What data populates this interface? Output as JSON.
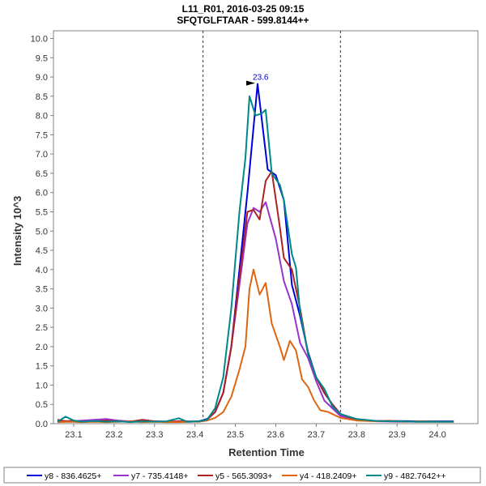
{
  "chart_data": {
    "type": "line",
    "title": "L11_R01, 2016-03-25 09:15",
    "subtitle": "SFQTGLFTAAR - 599.8144++",
    "xlabel": "Retention Time",
    "ylabel": "Intensity 10^3",
    "xlim": [
      23.05,
      24.1
    ],
    "ylim": [
      0,
      10.2
    ],
    "x_ticks": [
      23.1,
      23.2,
      23.3,
      23.4,
      23.5,
      23.6,
      23.7,
      23.8,
      23.9,
      24.0
    ],
    "x_tick_labels": [
      "23.1",
      "23.2",
      "23.3",
      "23.4",
      "23.5",
      "23.6",
      "23.7",
      "23.8",
      "23.9",
      "24.0"
    ],
    "y_ticks": [
      0.0,
      0.5,
      1.0,
      1.5,
      2.0,
      2.5,
      3.0,
      3.5,
      4.0,
      4.5,
      5.0,
      5.5,
      6.0,
      6.5,
      7.0,
      7.5,
      8.0,
      8.5,
      9.0,
      9.5,
      10.0
    ],
    "y_tick_labels": [
      "0.0",
      "0.5",
      "1.0",
      "1.5",
      "2.0",
      "2.5",
      "3.0",
      "3.5",
      "4.0",
      "4.5",
      "5.0",
      "5.5",
      "6.0",
      "6.5",
      "7.0",
      "7.5",
      "8.0",
      "8.5",
      "9.0",
      "9.5",
      "10.0"
    ],
    "grid": false,
    "integration_boundaries": [
      23.42,
      23.76
    ],
    "peak_annotation": {
      "label": "23.6",
      "x": 23.555,
      "y": 8.82,
      "color": "#0000cc"
    },
    "legend_position": "bottom",
    "series": [
      {
        "name": "y8 - 836.4625+",
        "color": "#0000dd",
        "points": [
          [
            23.06,
            0.06
          ],
          [
            23.09,
            0.05
          ],
          [
            23.12,
            0.06
          ],
          [
            23.15,
            0.05
          ],
          [
            23.18,
            0.06
          ],
          [
            23.21,
            0.05
          ],
          [
            23.24,
            0.06
          ],
          [
            23.27,
            0.05
          ],
          [
            23.3,
            0.06
          ],
          [
            23.33,
            0.05
          ],
          [
            23.36,
            0.05
          ],
          [
            23.39,
            0.05
          ],
          [
            23.41,
            0.06
          ],
          [
            23.43,
            0.12
          ],
          [
            23.45,
            0.3
          ],
          [
            23.47,
            0.8
          ],
          [
            23.49,
            2.0
          ],
          [
            23.51,
            4.0
          ],
          [
            23.53,
            6.0
          ],
          [
            23.555,
            8.82
          ],
          [
            23.58,
            6.6
          ],
          [
            23.6,
            6.45
          ],
          [
            23.62,
            5.8
          ],
          [
            23.64,
            3.6
          ],
          [
            23.66,
            2.8
          ],
          [
            23.68,
            1.85
          ],
          [
            23.7,
            1.2
          ],
          [
            23.72,
            0.8
          ],
          [
            23.74,
            0.5
          ],
          [
            23.76,
            0.25
          ],
          [
            23.78,
            0.15
          ],
          [
            23.8,
            0.1
          ],
          [
            23.85,
            0.07
          ],
          [
            23.9,
            0.07
          ],
          [
            23.95,
            0.06
          ],
          [
            24.0,
            0.06
          ],
          [
            24.04,
            0.06
          ]
        ]
      },
      {
        "name": "y7 - 735.4148+",
        "color": "#9933cc",
        "points": [
          [
            23.06,
            0.08
          ],
          [
            23.09,
            0.06
          ],
          [
            23.12,
            0.08
          ],
          [
            23.15,
            0.1
          ],
          [
            23.18,
            0.12
          ],
          [
            23.21,
            0.08
          ],
          [
            23.24,
            0.06
          ],
          [
            23.27,
            0.08
          ],
          [
            23.3,
            0.06
          ],
          [
            23.33,
            0.05
          ],
          [
            23.36,
            0.06
          ],
          [
            23.39,
            0.06
          ],
          [
            23.41,
            0.05
          ],
          [
            23.43,
            0.1
          ],
          [
            23.45,
            0.3
          ],
          [
            23.47,
            0.8
          ],
          [
            23.49,
            2.0
          ],
          [
            23.51,
            3.6
          ],
          [
            23.53,
            5.2
          ],
          [
            23.545,
            5.6
          ],
          [
            23.56,
            5.5
          ],
          [
            23.575,
            5.75
          ],
          [
            23.6,
            4.8
          ],
          [
            23.62,
            3.7
          ],
          [
            23.64,
            3.1
          ],
          [
            23.66,
            2.1
          ],
          [
            23.68,
            1.7
          ],
          [
            23.7,
            1.1
          ],
          [
            23.72,
            0.6
          ],
          [
            23.74,
            0.4
          ],
          [
            23.76,
            0.2
          ],
          [
            23.8,
            0.1
          ],
          [
            23.85,
            0.06
          ],
          [
            23.9,
            0.05
          ],
          [
            23.95,
            0.05
          ],
          [
            24.0,
            0.05
          ],
          [
            24.04,
            0.05
          ]
        ]
      },
      {
        "name": "y5 - 565.3093+",
        "color": "#aa2222",
        "points": [
          [
            23.06,
            0.1
          ],
          [
            23.08,
            0.06
          ],
          [
            23.1,
            0.08
          ],
          [
            23.12,
            0.05
          ],
          [
            23.15,
            0.06
          ],
          [
            23.18,
            0.08
          ],
          [
            23.21,
            0.06
          ],
          [
            23.24,
            0.05
          ],
          [
            23.27,
            0.1
          ],
          [
            23.3,
            0.06
          ],
          [
            23.33,
            0.05
          ],
          [
            23.36,
            0.06
          ],
          [
            23.39,
            0.05
          ],
          [
            23.41,
            0.06
          ],
          [
            23.43,
            0.1
          ],
          [
            23.45,
            0.3
          ],
          [
            23.47,
            0.8
          ],
          [
            23.49,
            2.0
          ],
          [
            23.51,
            3.8
          ],
          [
            23.53,
            5.5
          ],
          [
            23.545,
            5.55
          ],
          [
            23.56,
            5.3
          ],
          [
            23.575,
            6.3
          ],
          [
            23.59,
            6.55
          ],
          [
            23.61,
            5.1
          ],
          [
            23.62,
            4.3
          ],
          [
            23.64,
            4.0
          ],
          [
            23.66,
            3.0
          ],
          [
            23.68,
            1.8
          ],
          [
            23.7,
            1.2
          ],
          [
            23.72,
            0.8
          ],
          [
            23.74,
            0.5
          ],
          [
            23.76,
            0.25
          ],
          [
            23.8,
            0.1
          ],
          [
            23.85,
            0.07
          ],
          [
            23.9,
            0.06
          ],
          [
            23.95,
            0.05
          ],
          [
            24.0,
            0.05
          ],
          [
            24.04,
            0.05
          ]
        ]
      },
      {
        "name": "y4 - 418.2409+",
        "color": "#dd6611",
        "points": [
          [
            23.06,
            0.04
          ],
          [
            23.09,
            0.05
          ],
          [
            23.12,
            0.04
          ],
          [
            23.15,
            0.05
          ],
          [
            23.18,
            0.04
          ],
          [
            23.21,
            0.05
          ],
          [
            23.24,
            0.06
          ],
          [
            23.27,
            0.04
          ],
          [
            23.3,
            0.05
          ],
          [
            23.33,
            0.04
          ],
          [
            23.36,
            0.04
          ],
          [
            23.39,
            0.05
          ],
          [
            23.41,
            0.05
          ],
          [
            23.43,
            0.08
          ],
          [
            23.45,
            0.15
          ],
          [
            23.47,
            0.3
          ],
          [
            23.49,
            0.7
          ],
          [
            23.51,
            1.4
          ],
          [
            23.525,
            2.0
          ],
          [
            23.535,
            3.5
          ],
          [
            23.545,
            4.0
          ],
          [
            23.56,
            3.35
          ],
          [
            23.575,
            3.65
          ],
          [
            23.59,
            2.6
          ],
          [
            23.61,
            2.0
          ],
          [
            23.62,
            1.65
          ],
          [
            23.635,
            2.15
          ],
          [
            23.65,
            1.9
          ],
          [
            23.665,
            1.15
          ],
          [
            23.68,
            0.95
          ],
          [
            23.695,
            0.6
          ],
          [
            23.71,
            0.35
          ],
          [
            23.73,
            0.3
          ],
          [
            23.76,
            0.15
          ],
          [
            23.8,
            0.08
          ],
          [
            23.85,
            0.06
          ],
          [
            23.88,
            0.08
          ],
          [
            23.92,
            0.05
          ],
          [
            23.96,
            0.06
          ],
          [
            24.0,
            0.05
          ],
          [
            24.04,
            0.05
          ]
        ]
      },
      {
        "name": "y9 - 482.7642++",
        "color": "#008888",
        "points": [
          [
            23.06,
            0.05
          ],
          [
            23.08,
            0.18
          ],
          [
            23.1,
            0.08
          ],
          [
            23.12,
            0.05
          ],
          [
            23.15,
            0.07
          ],
          [
            23.18,
            0.05
          ],
          [
            23.21,
            0.06
          ],
          [
            23.24,
            0.04
          ],
          [
            23.27,
            0.06
          ],
          [
            23.3,
            0.05
          ],
          [
            23.33,
            0.06
          ],
          [
            23.36,
            0.14
          ],
          [
            23.38,
            0.05
          ],
          [
            23.41,
            0.06
          ],
          [
            23.43,
            0.1
          ],
          [
            23.45,
            0.4
          ],
          [
            23.47,
            1.2
          ],
          [
            23.49,
            3.0
          ],
          [
            23.51,
            5.5
          ],
          [
            23.525,
            6.9
          ],
          [
            23.535,
            8.5
          ],
          [
            23.55,
            8.0
          ],
          [
            23.565,
            8.05
          ],
          [
            23.575,
            8.15
          ],
          [
            23.59,
            6.5
          ],
          [
            23.61,
            6.2
          ],
          [
            23.62,
            5.8
          ],
          [
            23.64,
            4.4
          ],
          [
            23.65,
            4.05
          ],
          [
            23.66,
            2.9
          ],
          [
            23.68,
            1.8
          ],
          [
            23.7,
            1.2
          ],
          [
            23.72,
            0.9
          ],
          [
            23.74,
            0.45
          ],
          [
            23.76,
            0.25
          ],
          [
            23.8,
            0.12
          ],
          [
            23.85,
            0.07
          ],
          [
            23.9,
            0.06
          ],
          [
            23.95,
            0.05
          ],
          [
            24.0,
            0.05
          ],
          [
            24.04,
            0.05
          ]
        ]
      }
    ]
  }
}
